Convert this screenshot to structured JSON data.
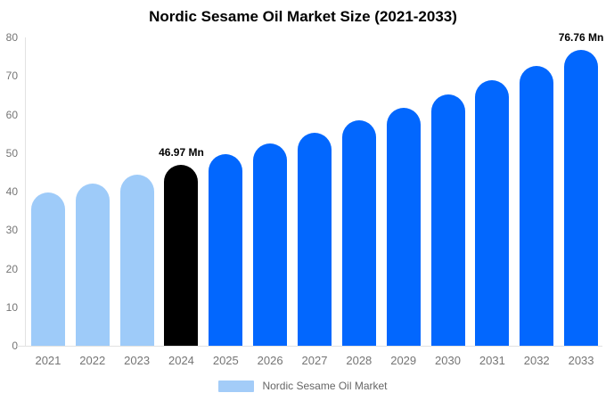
{
  "title": "Nordic Sesame Oil Market Size (2021-2033)",
  "legend": {
    "label": "Nordic Sesame Oil Market",
    "swatch_color": "#a3ccf8"
  },
  "colors": {
    "historical_bar": "#9ecbf9",
    "forecast_bar": "#0267fe",
    "highlight_bar": "#000000",
    "axis_line": "#e2e2e2",
    "tick_text": "#757575",
    "legend_text": "#666666",
    "title_text": "#000000",
    "background": "#ffffff"
  },
  "chart_data": {
    "type": "bar",
    "title": "Nordic Sesame Oil Market Size (2021-2033)",
    "xlabel": "",
    "ylabel": "",
    "unit": "Mn",
    "categories": [
      "2021",
      "2022",
      "2023",
      "2024",
      "2025",
      "2026",
      "2027",
      "2028",
      "2029",
      "2030",
      "2031",
      "2032",
      "2033"
    ],
    "values": [
      39.87,
      42.1,
      44.47,
      46.97,
      49.61,
      52.39,
      55.33,
      58.43,
      61.71,
      65.18,
      68.83,
      72.7,
      76.76
    ],
    "bar_colors": [
      "#9ecbf9",
      "#9ecbf9",
      "#9ecbf9",
      "#000000",
      "#0267fe",
      "#0267fe",
      "#0267fe",
      "#0267fe",
      "#0267fe",
      "#0267fe",
      "#0267fe",
      "#0267fe",
      "#0267fe"
    ],
    "annotations": [
      {
        "category": "2024",
        "text": "46.97 Mn"
      },
      {
        "category": "2033",
        "text": "76.76 Mn"
      }
    ],
    "ylim": [
      0,
      80
    ],
    "yticks": [
      0,
      10,
      20,
      30,
      40,
      50,
      60,
      70,
      80
    ],
    "grid": false,
    "legend_entries": [
      "Nordic Sesame Oil Market"
    ],
    "legend_position": "bottom"
  }
}
